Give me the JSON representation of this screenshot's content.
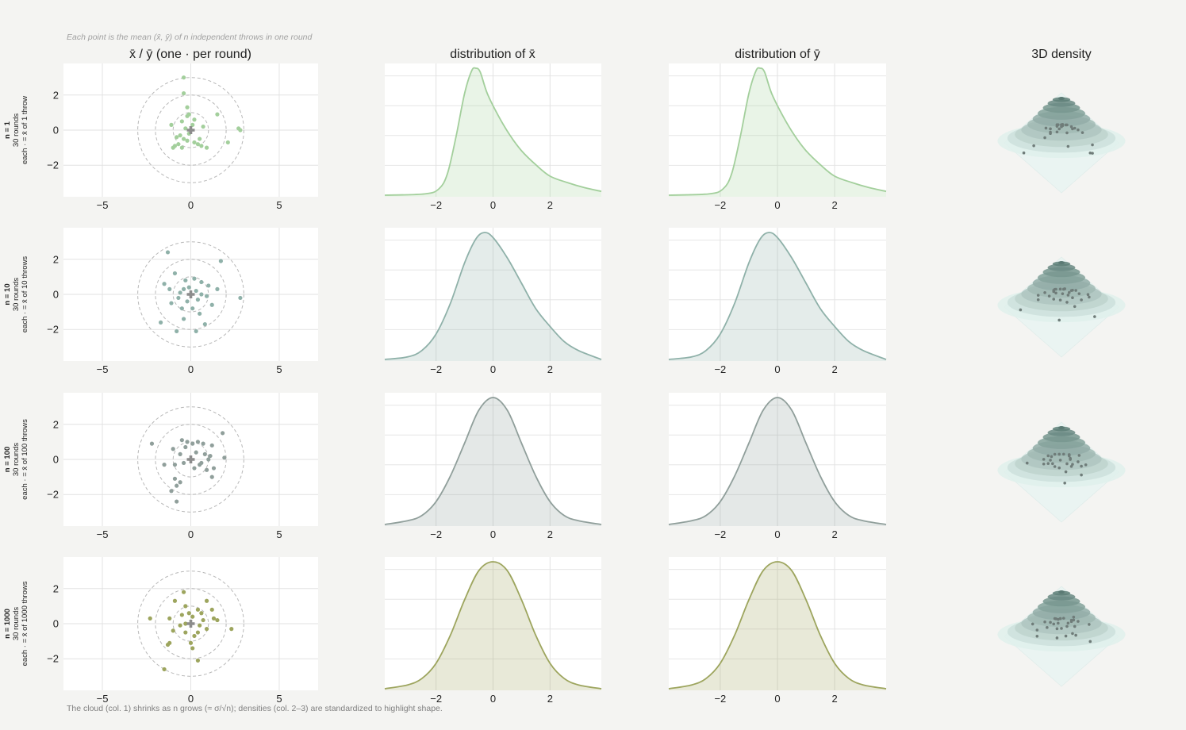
{
  "notes": {
    "top": "Each point is the mean (x̄, ȳ) of n independent throws in one round",
    "bottom": "The cloud (col. 1) shrinks as n grows (≈ σ/√n); densities (col. 2–3) are standardized to highlight shape."
  },
  "column_titles": [
    "x̄ / ȳ   (one · per round)",
    "distribution of x̄",
    "distribution of ȳ",
    "3D density"
  ],
  "rows": [
    {
      "n_label": "n = 1",
      "rounds_label": "30 rounds",
      "each_label": "each · = x̄ of 1 throw",
      "color": "#a3cf9c"
    },
    {
      "n_label": "n = 10",
      "rounds_label": "30 rounds",
      "each_label": "each · = x̄ of 10 throws",
      "color": "#8fb1a9"
    },
    {
      "n_label": "n = 100",
      "rounds_label": "30 rounds",
      "each_label": "each · = x̄ of 100 throws",
      "color": "#909f9b"
    },
    {
      "n_label": "n = 1000",
      "rounds_label": "30 rounds",
      "each_label": "each · = x̄ of 1000 throws",
      "color": "#9da55e"
    }
  ],
  "chart_data": [
    {
      "type": "scatter",
      "title": "x̄ / ȳ   (one · per round)",
      "xlim": [
        -7.2,
        7.2
      ],
      "ylim": [
        -3.8,
        3.8
      ],
      "xticks": [
        -5,
        0,
        5
      ],
      "yticks": [
        -2,
        0,
        2
      ],
      "grid": true,
      "reference_circles_radius": [
        1,
        2,
        3
      ],
      "series": [
        {
          "n": 1,
          "points": [
            [
              -0.4,
              3.0
            ],
            [
              -0.4,
              2.1
            ],
            [
              -0.2,
              1.3
            ],
            [
              -0.1,
              0.9
            ],
            [
              0.2,
              0.6
            ],
            [
              -0.5,
              0.5
            ],
            [
              0.1,
              0.3
            ],
            [
              -0.3,
              0.1
            ],
            [
              0.0,
              0.0
            ],
            [
              -0.1,
              -0.2
            ],
            [
              -0.6,
              -0.3
            ],
            [
              -0.4,
              -0.5
            ],
            [
              -0.2,
              -0.6
            ],
            [
              0.2,
              -0.7
            ],
            [
              -0.9,
              -0.9
            ],
            [
              -0.7,
              -0.8
            ],
            [
              -1.0,
              -1.0
            ],
            [
              0.4,
              -0.8
            ],
            [
              0.6,
              -0.9
            ],
            [
              0.9,
              -1.0
            ],
            [
              2.1,
              -0.7
            ],
            [
              2.7,
              0.1
            ],
            [
              2.8,
              0.0
            ],
            [
              1.5,
              0.9
            ],
            [
              -1.1,
              0.3
            ],
            [
              -0.8,
              -0.4
            ],
            [
              0.5,
              -0.5
            ],
            [
              -0.5,
              -1.0
            ],
            [
              0.7,
              0.2
            ],
            [
              -0.2,
              0.8
            ]
          ]
        },
        {
          "n": 10,
          "points": [
            [
              -1.3,
              2.4
            ],
            [
              1.7,
              1.9
            ],
            [
              -0.9,
              1.2
            ],
            [
              -1.5,
              0.6
            ],
            [
              -1.2,
              0.3
            ],
            [
              -0.3,
              0.8
            ],
            [
              0.2,
              0.9
            ],
            [
              0.6,
              0.7
            ],
            [
              -0.4,
              0.3
            ],
            [
              0.3,
              0.2
            ],
            [
              -0.7,
              -0.2
            ],
            [
              -0.2,
              -0.4
            ],
            [
              0.4,
              -0.3
            ],
            [
              0.9,
              -0.1
            ],
            [
              1.5,
              0.3
            ],
            [
              2.8,
              -0.2
            ],
            [
              -1.1,
              -0.5
            ],
            [
              -0.5,
              -0.8
            ],
            [
              0.1,
              -0.8
            ],
            [
              -0.4,
              -1.4
            ],
            [
              0.8,
              -1.7
            ],
            [
              -1.7,
              -1.6
            ],
            [
              -0.8,
              -2.1
            ],
            [
              0.6,
              0.0
            ],
            [
              1.2,
              -0.6
            ],
            [
              -0.1,
              0.4
            ],
            [
              0.5,
              -1.1
            ],
            [
              1.0,
              0.5
            ],
            [
              -0.6,
              0.1
            ],
            [
              0.3,
              -2.1
            ]
          ]
        },
        {
          "n": 100,
          "points": [
            [
              -2.2,
              0.9
            ],
            [
              -0.5,
              1.1
            ],
            [
              -0.2,
              1.0
            ],
            [
              0.1,
              0.9
            ],
            [
              0.4,
              1.0
            ],
            [
              0.7,
              0.9
            ],
            [
              1.2,
              0.8
            ],
            [
              1.8,
              1.5
            ],
            [
              -1.0,
              0.6
            ],
            [
              -0.6,
              0.3
            ],
            [
              0.3,
              0.4
            ],
            [
              0.8,
              0.3
            ],
            [
              1.1,
              0.2
            ],
            [
              -0.9,
              -0.3
            ],
            [
              -0.4,
              -0.2
            ],
            [
              0.5,
              -0.3
            ],
            [
              0.9,
              -0.6
            ],
            [
              1.3,
              -0.5
            ],
            [
              1.9,
              0.1
            ],
            [
              -1.5,
              -0.3
            ],
            [
              -0.9,
              -1.1
            ],
            [
              -0.6,
              -1.3
            ],
            [
              -0.8,
              -1.5
            ],
            [
              1.2,
              -1.0
            ],
            [
              -1.1,
              -1.8
            ],
            [
              -0.8,
              -2.4
            ],
            [
              0.6,
              -0.2
            ],
            [
              -0.3,
              0.7
            ],
            [
              0.2,
              -0.5
            ],
            [
              1.0,
              0.0
            ]
          ]
        },
        {
          "n": 1000,
          "points": [
            [
              -0.4,
              1.8
            ],
            [
              -0.9,
              1.3
            ],
            [
              -0.3,
              1.0
            ],
            [
              0.9,
              1.3
            ],
            [
              1.2,
              0.8
            ],
            [
              0.4,
              0.8
            ],
            [
              0.6,
              0.6
            ],
            [
              -0.5,
              0.5
            ],
            [
              0.1,
              0.4
            ],
            [
              -2.3,
              0.3
            ],
            [
              -1.2,
              0.3
            ],
            [
              1.3,
              0.3
            ],
            [
              1.5,
              0.2
            ],
            [
              -0.3,
              0.0
            ],
            [
              0.5,
              -0.1
            ],
            [
              2.3,
              -0.3
            ],
            [
              -1.0,
              -0.4
            ],
            [
              -0.3,
              -0.5
            ],
            [
              0.4,
              -0.5
            ],
            [
              0.2,
              -0.7
            ],
            [
              -1.3,
              -1.2
            ],
            [
              -1.2,
              -1.1
            ],
            [
              0.0,
              -1.1
            ],
            [
              0.1,
              -1.4
            ],
            [
              0.4,
              -2.1
            ],
            [
              -1.5,
              -2.6
            ],
            [
              0.7,
              0.2
            ],
            [
              -0.6,
              -0.1
            ],
            [
              0.9,
              -0.3
            ],
            [
              -0.1,
              0.6
            ]
          ]
        }
      ]
    },
    {
      "type": "area",
      "title": "distribution of x̄",
      "xlim": [
        -3.8,
        3.8
      ],
      "xticks": [
        -2,
        0,
        2
      ],
      "series": [
        {
          "n": 1,
          "x": [
            -3.8,
            -2.4,
            -1.9,
            -1.6,
            -1.3,
            -1.0,
            -0.75,
            -0.6,
            -0.45,
            -0.2,
            0.2,
            0.6,
            1.0,
            1.5,
            2.0,
            2.6,
            3.2,
            3.8
          ],
          "y": [
            0.0,
            0.01,
            0.05,
            0.17,
            0.46,
            0.8,
            0.98,
            1.0,
            0.97,
            0.8,
            0.62,
            0.47,
            0.35,
            0.24,
            0.15,
            0.1,
            0.06,
            0.03
          ]
        },
        {
          "n": 10,
          "x": [
            -3.8,
            -3.0,
            -2.5,
            -2.0,
            -1.5,
            -1.0,
            -0.6,
            -0.3,
            0.0,
            0.5,
            1.0,
            1.5,
            2.0,
            2.5,
            3.0,
            3.8
          ],
          "y": [
            0.0,
            0.02,
            0.07,
            0.2,
            0.44,
            0.76,
            0.95,
            1.0,
            0.96,
            0.8,
            0.6,
            0.4,
            0.26,
            0.14,
            0.07,
            0.0
          ]
        },
        {
          "n": 100,
          "x": [
            -3.8,
            -3.0,
            -2.5,
            -2.0,
            -1.5,
            -1.0,
            -0.5,
            0.0,
            0.5,
            1.0,
            1.5,
            2.0,
            2.5,
            3.0,
            3.8
          ],
          "y": [
            0.0,
            0.03,
            0.07,
            0.18,
            0.38,
            0.64,
            0.9,
            1.0,
            0.9,
            0.64,
            0.38,
            0.18,
            0.07,
            0.03,
            0.0
          ]
        },
        {
          "n": 1000,
          "x": [
            -3.8,
            -3.0,
            -2.5,
            -2.0,
            -1.5,
            -1.0,
            -0.5,
            0.0,
            0.5,
            1.0,
            1.5,
            2.0,
            2.5,
            3.0,
            3.8
          ],
          "y": [
            0.0,
            0.03,
            0.08,
            0.2,
            0.42,
            0.7,
            0.93,
            1.0,
            0.93,
            0.7,
            0.42,
            0.2,
            0.08,
            0.03,
            0.0
          ]
        }
      ]
    },
    {
      "type": "area",
      "title": "distribution of ȳ",
      "xlim": [
        -3.8,
        3.8
      ],
      "xticks": [
        -2,
        0,
        2
      ],
      "series": [
        {
          "n": 1,
          "x": [
            -3.8,
            -2.4,
            -1.9,
            -1.6,
            -1.3,
            -1.0,
            -0.75,
            -0.6,
            -0.45,
            -0.2,
            0.2,
            0.6,
            1.0,
            1.5,
            2.0,
            2.6,
            3.2,
            3.8
          ],
          "y": [
            0.0,
            0.01,
            0.05,
            0.17,
            0.46,
            0.8,
            0.98,
            1.0,
            0.97,
            0.8,
            0.62,
            0.47,
            0.35,
            0.24,
            0.15,
            0.1,
            0.06,
            0.03
          ]
        },
        {
          "n": 10,
          "x": [
            -3.8,
            -3.0,
            -2.5,
            -2.0,
            -1.5,
            -1.0,
            -0.6,
            -0.3,
            0.0,
            0.5,
            1.0,
            1.5,
            2.0,
            2.5,
            3.0,
            3.8
          ],
          "y": [
            0.0,
            0.02,
            0.07,
            0.2,
            0.44,
            0.76,
            0.95,
            1.0,
            0.96,
            0.8,
            0.6,
            0.4,
            0.26,
            0.14,
            0.07,
            0.0
          ]
        },
        {
          "n": 100,
          "x": [
            -3.8,
            -3.0,
            -2.5,
            -2.0,
            -1.5,
            -1.0,
            -0.5,
            0.0,
            0.5,
            1.0,
            1.5,
            2.0,
            2.5,
            3.0,
            3.8
          ],
          "y": [
            0.0,
            0.03,
            0.07,
            0.18,
            0.38,
            0.64,
            0.9,
            1.0,
            0.9,
            0.64,
            0.38,
            0.18,
            0.07,
            0.03,
            0.0
          ]
        },
        {
          "n": 1000,
          "x": [
            -3.8,
            -3.0,
            -2.5,
            -2.0,
            -1.5,
            -1.0,
            -0.5,
            0.0,
            0.5,
            1.0,
            1.5,
            2.0,
            2.5,
            3.0,
            3.8
          ],
          "y": [
            0.0,
            0.03,
            0.08,
            0.2,
            0.42,
            0.7,
            0.93,
            1.0,
            0.93,
            0.7,
            0.42,
            0.2,
            0.08,
            0.03,
            0.0
          ]
        }
      ]
    },
    {
      "type": "surface",
      "title": "3D density",
      "grid": false,
      "series": [
        {
          "n": 1
        },
        {
          "n": 10
        },
        {
          "n": 100
        },
        {
          "n": 1000
        }
      ]
    }
  ]
}
